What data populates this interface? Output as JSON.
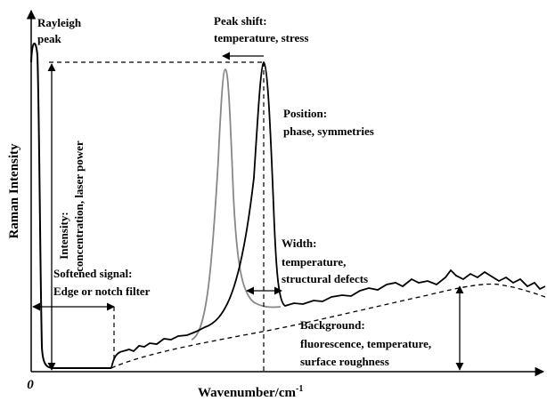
{
  "axes": {
    "y_label": "Raman Intensity",
    "x_label": {
      "text": "Wavenumber/cm",
      "superscript": "-1"
    },
    "origin": "0"
  },
  "annotations": {
    "rayleigh": [
      "Rayleigh",
      "peak"
    ],
    "peak_shift": [
      "Peak shift:",
      "temperature, stress"
    ],
    "position": [
      "Position:",
      "phase, symmetries"
    ],
    "intensity": [
      "Intensity:",
      "concentration, laser power"
    ],
    "width": [
      "Width:",
      "temperature,",
      "structural defects"
    ],
    "softened": [
      "Softened signal:",
      "Edge or notch filter"
    ],
    "background": [
      "Background:",
      "fluorescence, temperature,",
      "surface roughness"
    ]
  }
}
